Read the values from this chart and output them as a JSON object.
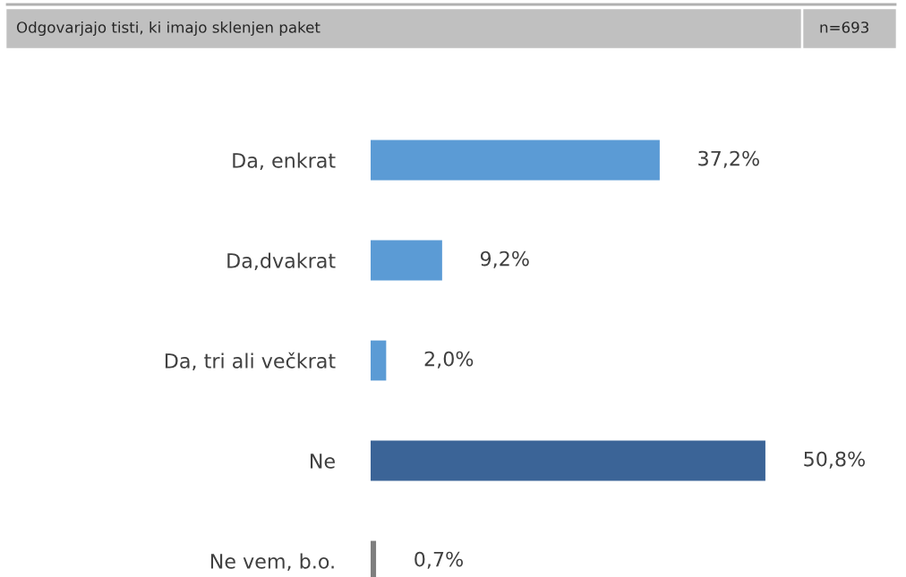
{
  "chart_data": {
    "type": "bar",
    "orientation": "horizontal",
    "title": "Odgovarjajo tisti, ki imajo sklenjen paket",
    "annotations": [
      "n=693"
    ],
    "categories": [
      "Da, enkrat",
      "Da,dvakrat",
      "Da, tri ali večkrat",
      "Ne",
      "Ne vem, b.o."
    ],
    "values": [
      37.2,
      9.2,
      2.0,
      50.8,
      0.7
    ],
    "value_labels": [
      "37,2%",
      "9,2%",
      "2,0%",
      "50,8%",
      "0,7%"
    ],
    "colors": [
      "#5b9bd5",
      "#5b9bd5",
      "#5b9bd5",
      "#3b6497",
      "#7f7f7f"
    ],
    "grid": false,
    "legend": false
  }
}
